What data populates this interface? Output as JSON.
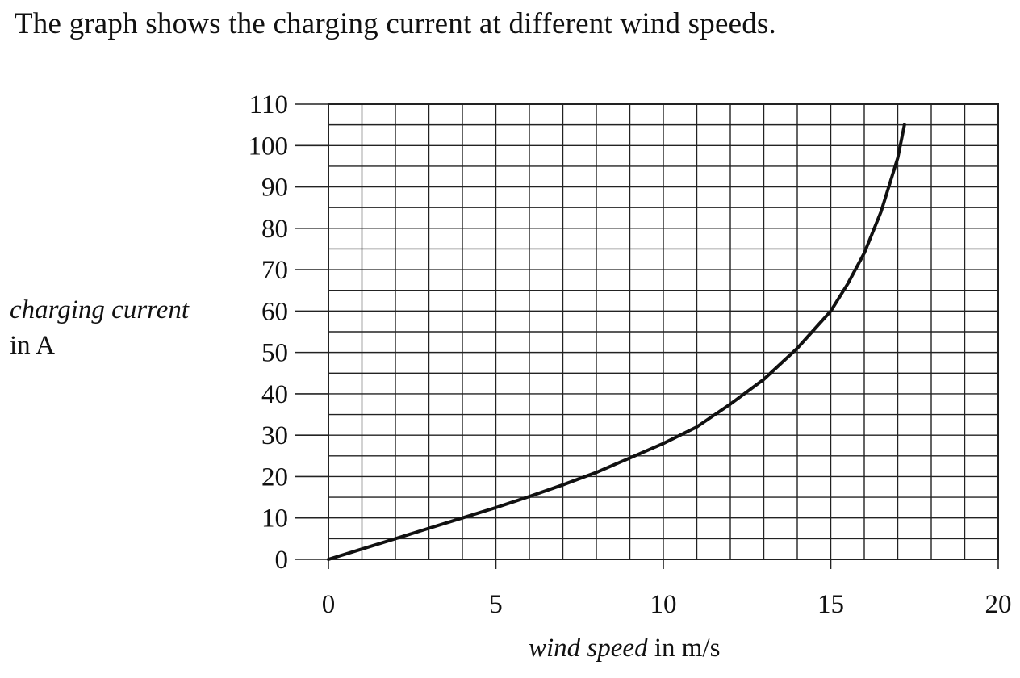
{
  "intro_text": "The graph shows the charging current at different wind speeds.",
  "chart_data": {
    "type": "line",
    "ylabel_line1": "charging current",
    "ylabel_line2": "in A",
    "xlabel_variable": "wind speed",
    "xlabel_unit": "in m/s",
    "xlim": [
      0,
      20
    ],
    "ylim": [
      0,
      110
    ],
    "x_ticks": [
      0,
      5,
      10,
      15,
      20
    ],
    "y_ticks": [
      0,
      10,
      20,
      30,
      40,
      50,
      60,
      70,
      80,
      90,
      100,
      110
    ],
    "x_minor_step": 1,
    "y_minor_step": 5,
    "grid": true,
    "series": [
      {
        "x": [
          0,
          1,
          2,
          3,
          4,
          5,
          6,
          7,
          8,
          9,
          10,
          11,
          12,
          13,
          14,
          15,
          15.5,
          16,
          16.5,
          17,
          17.2
        ],
        "y": [
          0,
          2.5,
          5,
          7.5,
          10,
          12.5,
          15.2,
          18,
          21,
          24.5,
          28,
          32,
          37.5,
          43.5,
          51,
          60,
          66.5,
          74,
          84,
          97,
          105
        ]
      }
    ],
    "line_color": "#111111",
    "grid_color": "#222222"
  }
}
